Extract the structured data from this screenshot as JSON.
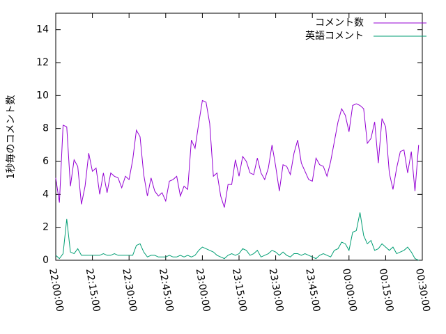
{
  "chart_data": {
    "type": "line",
    "ylabel": "1秒毎のコメント数",
    "x": [
      0,
      1.5,
      3,
      4.5,
      6,
      7.5,
      9,
      10.5,
      12,
      13.5,
      15,
      16.5,
      18,
      19.5,
      21,
      22.5,
      24,
      25.5,
      27,
      28.5,
      30,
      31.5,
      33,
      34.5,
      36,
      37.5,
      39,
      40.5,
      42,
      43.5,
      45,
      46.5,
      48,
      49.5,
      51,
      52.5,
      54,
      55.5,
      57,
      58.5,
      60,
      61.5,
      63,
      64.5,
      66,
      67.5,
      69,
      70.5,
      72,
      73.5,
      75,
      76.5,
      78,
      79.5,
      81,
      82.5,
      84,
      85.5,
      87,
      88.5,
      90,
      91.5,
      93,
      94.5,
      96,
      97.5,
      99,
      100.5,
      102,
      103.5,
      105,
      106.5,
      108,
      109.5,
      111,
      112.5,
      114,
      115.5,
      117,
      118.5,
      120,
      121.5,
      123,
      124.5,
      126,
      127.5,
      129,
      130.5,
      132,
      133.5,
      135,
      136.5,
      138,
      139.5,
      141,
      142.5,
      144,
      145.5,
      147,
      148.5
    ],
    "series": [
      {
        "name": "コメント数",
        "color": "#9400d3",
        "values": [
          5.0,
          3.5,
          8.2,
          8.1,
          4.5,
          6.1,
          5.7,
          3.4,
          4.5,
          6.5,
          5.4,
          5.6,
          4.0,
          5.3,
          4.1,
          5.3,
          5.1,
          5.0,
          4.4,
          5.1,
          4.9,
          6.1,
          7.9,
          7.5,
          5.2,
          3.9,
          5.0,
          4.2,
          3.9,
          4.1,
          3.6,
          4.8,
          4.9,
          5.1,
          3.9,
          4.5,
          4.3,
          7.3,
          6.8,
          8.3,
          9.7,
          9.6,
          8.3,
          5.1,
          5.3,
          3.9,
          3.2,
          4.6,
          4.6,
          6.1,
          5.1,
          6.3,
          6.0,
          5.3,
          5.2,
          6.2,
          5.3,
          4.9,
          5.6,
          7.0,
          5.7,
          4.2,
          5.8,
          5.7,
          5.2,
          6.5,
          7.3,
          5.9,
          5.4,
          4.9,
          4.8,
          6.2,
          5.8,
          5.7,
          5.1,
          6.0,
          7.2,
          8.4,
          9.2,
          8.8,
          7.8,
          9.4,
          9.5,
          9.4,
          9.2,
          7.1,
          7.4,
          8.4,
          5.9,
          8.6,
          8.1,
          5.3,
          4.3,
          5.6,
          6.6,
          6.7,
          5.3,
          6.6,
          4.2,
          7.0
        ]
      },
      {
        "name": "英語コメント",
        "color": "#009e73",
        "values": [
          0.3,
          0.1,
          0.4,
          2.5,
          0.5,
          0.4,
          0.7,
          0.3,
          0.3,
          0.3,
          0.3,
          0.3,
          0.3,
          0.4,
          0.3,
          0.3,
          0.4,
          0.3,
          0.3,
          0.3,
          0.3,
          0.3,
          0.9,
          1.0,
          0.5,
          0.2,
          0.3,
          0.3,
          0.2,
          0.2,
          0.2,
          0.3,
          0.2,
          0.2,
          0.3,
          0.2,
          0.3,
          0.2,
          0.3,
          0.6,
          0.8,
          0.7,
          0.6,
          0.5,
          0.3,
          0.2,
          0.1,
          0.3,
          0.4,
          0.3,
          0.4,
          0.7,
          0.6,
          0.3,
          0.4,
          0.6,
          0.2,
          0.3,
          0.4,
          0.6,
          0.5,
          0.3,
          0.5,
          0.3,
          0.2,
          0.4,
          0.4,
          0.3,
          0.4,
          0.3,
          0.2,
          0.1,
          0.3,
          0.4,
          0.3,
          0.2,
          0.6,
          0.7,
          1.1,
          1.0,
          0.6,
          1.7,
          1.8,
          2.9,
          1.5,
          1.0,
          1.2,
          0.6,
          0.7,
          1.0,
          0.8,
          0.6,
          0.8,
          0.4,
          0.5,
          0.6,
          0.8,
          0.5,
          0.1,
          0.0
        ]
      }
    ],
    "xlim": [
      0,
      150
    ],
    "xticks": [
      {
        "value": 0,
        "label": "22:00:00"
      },
      {
        "value": 15,
        "label": "22:15:00"
      },
      {
        "value": 30,
        "label": "22:30:00"
      },
      {
        "value": 45,
        "label": "22:45:00"
      },
      {
        "value": 60,
        "label": "23:00:00"
      },
      {
        "value": 75,
        "label": "23:15:00"
      },
      {
        "value": 90,
        "label": "23:30:00"
      },
      {
        "value": 105,
        "label": "23:45:00"
      },
      {
        "value": 120,
        "label": "00:00:00"
      },
      {
        "value": 135,
        "label": "00:15:00"
      },
      {
        "value": 150,
        "label": "00:30:00"
      }
    ],
    "ylim": [
      0,
      15
    ],
    "yticks": [
      0,
      2,
      4,
      6,
      8,
      10,
      12,
      14
    ],
    "legend": "top-right"
  }
}
